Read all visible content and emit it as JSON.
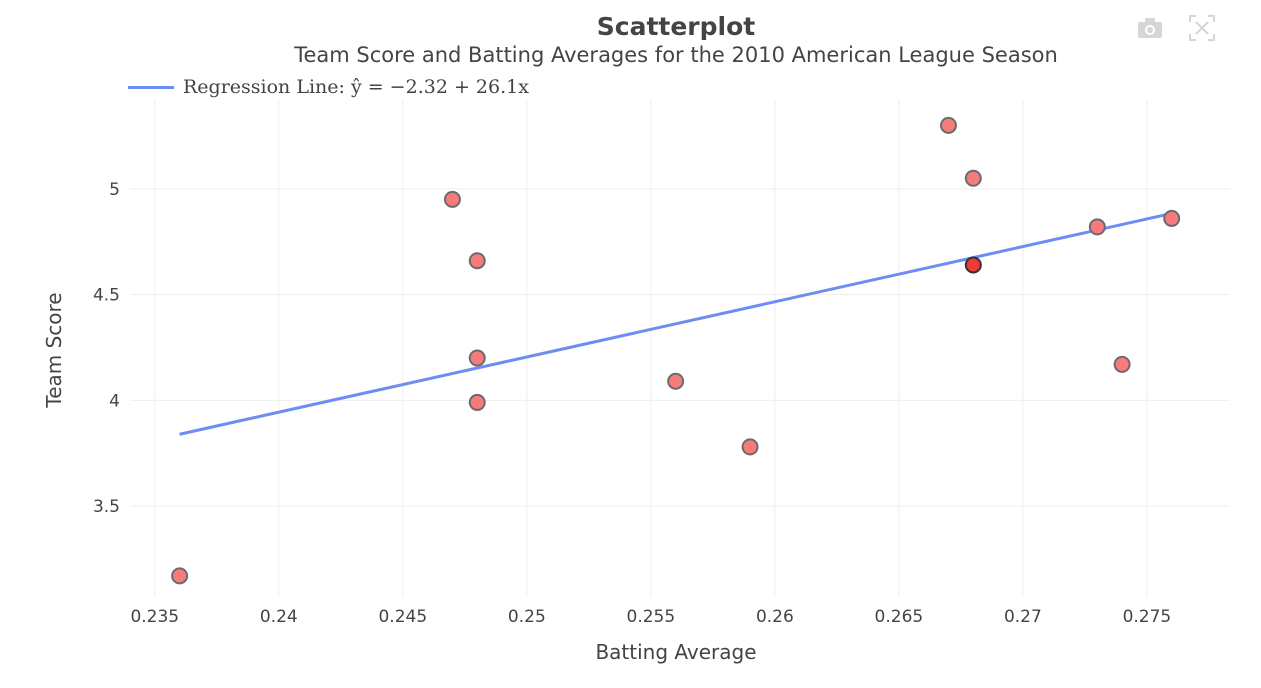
{
  "chart_data": {
    "type": "scatter",
    "title": "Scatterplot",
    "subtitle": "Team Score and Batting Averages for the 2010 American League Season",
    "xlabel": "Batting Average",
    "ylabel": "Team Score",
    "xlim": [
      0.234,
      0.27835
    ],
    "ylim": [
      3.07,
      5.42
    ],
    "xticks": [
      0.235,
      0.24,
      0.245,
      0.25,
      0.255,
      0.26,
      0.265,
      0.27,
      0.275
    ],
    "xtick_labels": [
      "0.235",
      "0.24",
      "0.245",
      "0.25",
      "0.255",
      "0.26",
      "0.265",
      "0.27",
      "0.275"
    ],
    "yticks": [
      3.5,
      4,
      4.5,
      5
    ],
    "ytick_labels": [
      "3.5",
      "4",
      "4.5",
      "5"
    ],
    "grid": true,
    "points": [
      {
        "x": 0.236,
        "y": 3.17
      },
      {
        "x": 0.247,
        "y": 4.95
      },
      {
        "x": 0.248,
        "y": 4.66
      },
      {
        "x": 0.248,
        "y": 4.2
      },
      {
        "x": 0.248,
        "y": 3.99
      },
      {
        "x": 0.256,
        "y": 4.09
      },
      {
        "x": 0.259,
        "y": 3.78
      },
      {
        "x": 0.267,
        "y": 5.3
      },
      {
        "x": 0.268,
        "y": 5.05
      },
      {
        "x": 0.268,
        "y": 4.64,
        "highlighted": true
      },
      {
        "x": 0.273,
        "y": 4.82
      },
      {
        "x": 0.274,
        "y": 4.17
      },
      {
        "x": 0.276,
        "y": 4.86
      }
    ],
    "regression": {
      "intercept": -2.32,
      "slope": 26.1,
      "x_range": [
        0.236,
        0.276
      ]
    },
    "legend": {
      "label": "Regression Line: ŷ = −2.32 + 26.1x",
      "placement": "top-left"
    },
    "colors": {
      "points": "#f77b7b",
      "point_stroke": "#6b6b6b",
      "highlight": "#f03a3a",
      "line": "#6c8ef2",
      "grid": "#eeeeee"
    }
  },
  "modebar": {
    "camera_icon": "camera-icon",
    "autoscale_icon": "autoscale-icon"
  }
}
